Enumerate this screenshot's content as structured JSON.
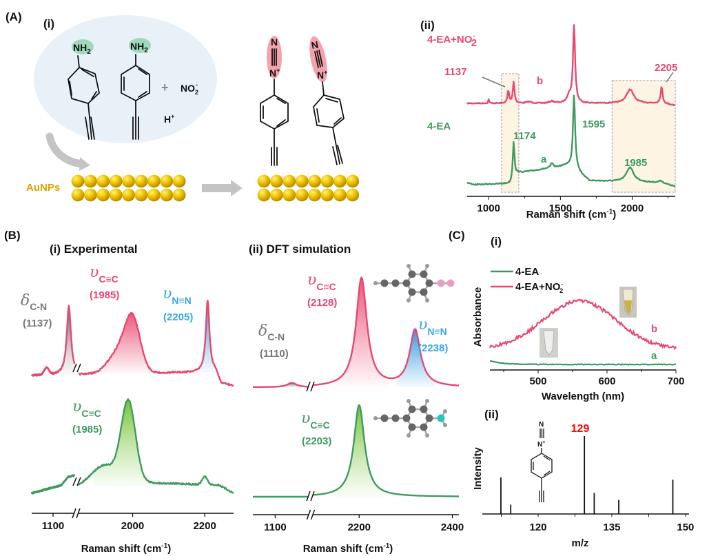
{
  "panel_labels": {
    "A": "(A)",
    "A_i": "(i)",
    "A_ii": "(ii)",
    "B": "(B)",
    "B_i": "(i) Experimental",
    "B_ii": "(ii) DFT simulation",
    "C": "(C)",
    "C_i": "(i)",
    "C_ii": "(ii)"
  },
  "scheme": {
    "nh": "NH",
    "nh_sub": "2",
    "plus": "+",
    "no": "NO",
    "no_sub": "2",
    "no_sup": "-",
    "h": "H",
    "h_sup": "+",
    "n": "N",
    "nplus": "N",
    "nplus_sup": "+",
    "aunps": "AuNPs"
  },
  "colors": {
    "pink": "#e8476f",
    "green": "#3e9a5f",
    "blue": "#3aa5e8",
    "gray": "#777777",
    "gold": "#e8b500",
    "highlight_box": "#fdf4e3",
    "nh2_highlight": "#9fd8bd",
    "diazo_highlight": "#f4a3ad",
    "solution": "#e8f1f8",
    "ms_label": "#ff0000"
  },
  "chart_data": [
    {
      "id": "A_ii",
      "type": "line",
      "xlabel": "Raman shift (cm",
      "xlabel_sup": "-1",
      "xlabel_end": ")",
      "xlim": [
        850,
        2300
      ],
      "xticks": [
        1000,
        1500,
        2000
      ],
      "xtick_labels": [
        "1000",
        "1500",
        "2000"
      ],
      "highlight_ranges": [
        [
          1090,
          1210
        ],
        [
          1860,
          2300
        ]
      ],
      "series": [
        {
          "name": "4-EA+NO",
          "name_sub": "2",
          "name_sup": "-",
          "tag": "b",
          "color": "#e8476f",
          "peaks": [
            [
              1000,
              0.1,
              4
            ],
            [
              1137,
              0.32,
              7
            ],
            [
              1174,
              0.55,
              7
            ],
            [
              1280,
              0.04,
              20
            ],
            [
              1440,
              0.05,
              20
            ],
            [
              1560,
              0.2,
              15
            ],
            [
              1595,
              2.0,
              9
            ],
            [
              1985,
              0.36,
              30
            ],
            [
              2205,
              0.43,
              8
            ]
          ],
          "baseline": [
            [
              850,
              0
            ],
            [
              2200,
              0
            ],
            [
              2300,
              -0.05
            ]
          ]
        },
        {
          "name": "4-EA",
          "tag": "a",
          "color": "#3e9a5f",
          "peaks": [
            [
              1174,
              0.95,
              7
            ],
            [
              1440,
              0.12,
              10
            ],
            [
              1595,
              1.92,
              9
            ],
            [
              1985,
              0.38,
              30
            ],
            [
              2200,
              0.05,
              15
            ]
          ],
          "baseline": [
            [
              850,
              0.05
            ],
            [
              900,
              0
            ],
            [
              1150,
              0.03
            ],
            [
              1200,
              0.3
            ],
            [
              1550,
              0.5
            ],
            [
              1620,
              0.35
            ],
            [
              1700,
              0.1
            ],
            [
              2200,
              0.05
            ],
            [
              2300,
              -0.05
            ]
          ]
        }
      ],
      "annotations": {
        "b_1137": "1137",
        "b_2205": "2205",
        "a_1174": "1174",
        "a_1595": "1595",
        "a_1985": "1985"
      }
    },
    {
      "id": "B_i",
      "type": "line",
      "xlabel": "Raman shift (cm",
      "xlabel_sup": "-1",
      "xlabel_end": ")",
      "broken_axis": [
        [
          1050,
          1150
        ],
        [
          1850,
          2280
        ]
      ],
      "xticks": [
        1100,
        2000,
        2200
      ],
      "xtick_labels": [
        "1100",
        "2000",
        "2200"
      ],
      "series": [
        {
          "color": "#e8476f",
          "peaks": [
            [
              1085,
              0.1,
              8,
              "g"
            ],
            [
              1137,
              1.0,
              6,
              "l"
            ],
            [
              1960,
              0.3,
              40,
              "g"
            ],
            [
              2000,
              0.75,
              30,
              "g"
            ],
            [
              2208,
              1.05,
              6,
              "l"
            ]
          ],
          "baseline": [
            [
              1050,
              0
            ],
            [
              1850,
              0.02
            ],
            [
              2230,
              0.05
            ],
            [
              2245,
              -0.12
            ],
            [
              2280,
              -0.15
            ]
          ],
          "fills": [
            [
              1118,
              1150,
              "gray"
            ],
            [
              1880,
              2060,
              "pink"
            ],
            [
              2188,
              2228,
              "blue"
            ]
          ]
        },
        {
          "color": "#3e9a5f",
          "peaks": [
            [
              1920,
              0.25,
              50,
              "g"
            ],
            [
              1988,
              1.0,
              28,
              "g"
            ],
            [
              2200,
              0.1,
              10,
              "g"
            ]
          ],
          "baseline": [
            [
              1050,
              -0.05
            ],
            [
              1120,
              0.05
            ],
            [
              1135,
              0.15
            ],
            [
              1150,
              0.17
            ],
            [
              1850,
              0.02
            ],
            [
              2040,
              0.08
            ],
            [
              2240,
              0.05
            ],
            [
              2280,
              -0.05
            ]
          ],
          "fills": [
            [
              1890,
              2070,
              "green"
            ]
          ]
        }
      ],
      "annotations": {
        "dcn": "δ",
        "dcn_sub": "C-N",
        "dcn_val": "(1137)",
        "cc_top": "υ",
        "cc_top_sub": "C≡C",
        "cc_top_val": "(1985)",
        "nn": "υ",
        "nn_sub": "N≡N",
        "nn_val": "(2205)",
        "cc_bot": "υ",
        "cc_bot_sub": "C≡C",
        "cc_bot_val": "(1985)"
      }
    },
    {
      "id": "B_ii",
      "type": "line",
      "xlabel": "Raman shift (cm",
      "xlabel_sup": "-1",
      "xlabel_end": ")",
      "broken_axis": [
        [
          1060,
          1160
        ],
        [
          2102,
          2414
        ]
      ],
      "xticks": [
        1100,
        2200,
        2400
      ],
      "xtick_labels": [
        "1100",
        "2200",
        "2400"
      ],
      "series": [
        {
          "color": "#e8476f",
          "peaks": [
            [
              1130,
              0.04,
              10,
              "l"
            ],
            [
              2205,
              1.0,
              14,
              "l"
            ],
            [
              2320,
              0.52,
              14,
              "l"
            ]
          ],
          "baseline": [
            [
              1060,
              0
            ],
            [
              2414,
              0
            ]
          ],
          "fills": [
            [
              1112,
              1150,
              "gray"
            ],
            [
              2150,
              2262,
              "pink"
            ],
            [
              2280,
              2362,
              "blue"
            ]
          ]
        },
        {
          "color": "#3e9a5f",
          "peaks": [
            [
              2200,
              1.0,
              14,
              "l"
            ]
          ],
          "baseline": [
            [
              1060,
              0
            ],
            [
              2414,
              0
            ]
          ],
          "fills": [
            [
              2145,
              2255,
              "green"
            ]
          ]
        }
      ],
      "annotations": {
        "dcn": "δ",
        "dcn_sub": "C-N",
        "dcn_val": "(1110)",
        "cc_top": "υ",
        "cc_top_sub": "C≡C",
        "cc_top_val": "(2128)",
        "nn": "υ",
        "nn_sub": "N≡N",
        "nn_val": "(2238)",
        "cc_bot": "υ",
        "cc_bot_sub": "C≡C",
        "cc_bot_val": "(2203)"
      }
    },
    {
      "id": "C_i",
      "type": "line",
      "xlabel": "Wavelength (nm)",
      "ylabel": "Absorbance",
      "xlim": [
        430,
        700
      ],
      "xticks": [
        500,
        600,
        700
      ],
      "xtick_labels": [
        "500",
        "600",
        "700"
      ],
      "legend": "top-left",
      "series": [
        {
          "name": "4-EA",
          "tag": "a",
          "color": "#3e9a5f",
          "model": {
            "offset": 0.08,
            "decay_amp": 0.05,
            "decay_nm": 20
          }
        },
        {
          "name": "4-EA+NO",
          "name_sub": "2",
          "name_sup": "-",
          "tag": "b",
          "color": "#e8476f",
          "model": {
            "offset": 0.3,
            "amp": 0.7,
            "center": 560,
            "width": 75
          }
        }
      ]
    },
    {
      "id": "C_ii",
      "type": "bar",
      "xlabel": "m/z",
      "ylabel": "Intensity",
      "xticks": [
        120,
        135,
        150
      ],
      "xtick_labels": [
        "120",
        "135",
        "150"
      ],
      "x": [
        112,
        114,
        129,
        131,
        136,
        147
      ],
      "values": [
        47,
        12,
        100,
        27,
        18,
        44
      ],
      "highlight_label": "129"
    }
  ]
}
